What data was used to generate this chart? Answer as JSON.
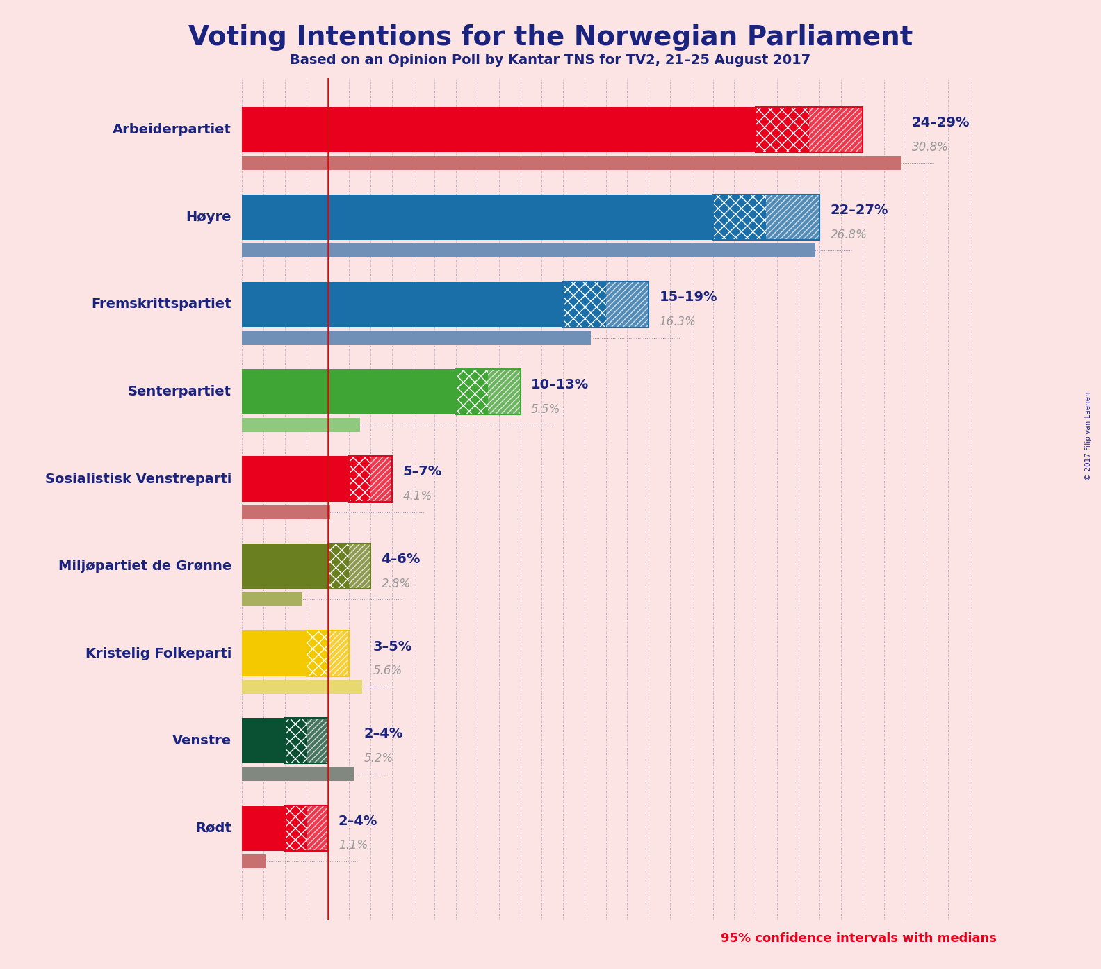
{
  "title": "Voting Intentions for the Norwegian Parliament",
  "subtitle": "Based on an Opinion Poll by Kantar TNS for TV2, 21–25 August 2017",
  "copyright": "© 2017 Filip van Laenen",
  "footnote": "95% confidence intervals with medians",
  "background_color": "#fce4e4",
  "parties": [
    {
      "name": "Arbeiderpartiet",
      "color": "#e8001c",
      "median_color": "#c87070",
      "ci_low": 24,
      "ci_high": 29,
      "median": 30.8,
      "label": "24–29%",
      "median_label": "30.8%"
    },
    {
      "name": "Høyre",
      "color": "#1b6fa8",
      "median_color": "#7090b8",
      "ci_low": 22,
      "ci_high": 27,
      "median": 26.8,
      "label": "22–27%",
      "median_label": "26.8%"
    },
    {
      "name": "Fremskrittspartiet",
      "color": "#1b6fa8",
      "median_color": "#7090b8",
      "ci_low": 15,
      "ci_high": 19,
      "median": 16.3,
      "label": "15–19%",
      "median_label": "16.3%"
    },
    {
      "name": "Senterpartiet",
      "color": "#3fa535",
      "median_color": "#90c880",
      "ci_low": 10,
      "ci_high": 13,
      "median": 5.5,
      "label": "10–13%",
      "median_label": "5.5%"
    },
    {
      "name": "Sosialistisk Venstreparti",
      "color": "#e8001c",
      "median_color": "#c87070",
      "ci_low": 5,
      "ci_high": 7,
      "median": 4.1,
      "label": "5–7%",
      "median_label": "4.1%"
    },
    {
      "name": "Miljøpartiet de Grønne",
      "color": "#6a8020",
      "median_color": "#a8b060",
      "ci_low": 4,
      "ci_high": 6,
      "median": 2.8,
      "label": "4–6%",
      "median_label": "2.8%"
    },
    {
      "name": "Kristelig Folkeparti",
      "color": "#f4c900",
      "median_color": "#e8d870",
      "ci_low": 3,
      "ci_high": 5,
      "median": 5.6,
      "label": "3–5%",
      "median_label": "5.6%"
    },
    {
      "name": "Venstre",
      "color": "#0a5032",
      "median_color": "#808880",
      "ci_low": 2,
      "ci_high": 4,
      "median": 5.2,
      "label": "2–4%",
      "median_label": "5.2%"
    },
    {
      "name": "Rødt",
      "color": "#e8001c",
      "median_color": "#c87070",
      "ci_low": 2,
      "ci_high": 4,
      "median": 1.1,
      "label": "2–4%",
      "median_label": "1.1%"
    }
  ],
  "xlim": [
    0,
    35
  ],
  "vertical_line_x": 4,
  "title_color": "#1a237e",
  "subtitle_color": "#1a237e",
  "party_name_color": "#1a237e",
  "label_color": "#1a237e",
  "median_text_color": "#999999",
  "footnote_color": "#e8001c",
  "grid_color": "#1a237e",
  "red_line_color": "#cc1111"
}
